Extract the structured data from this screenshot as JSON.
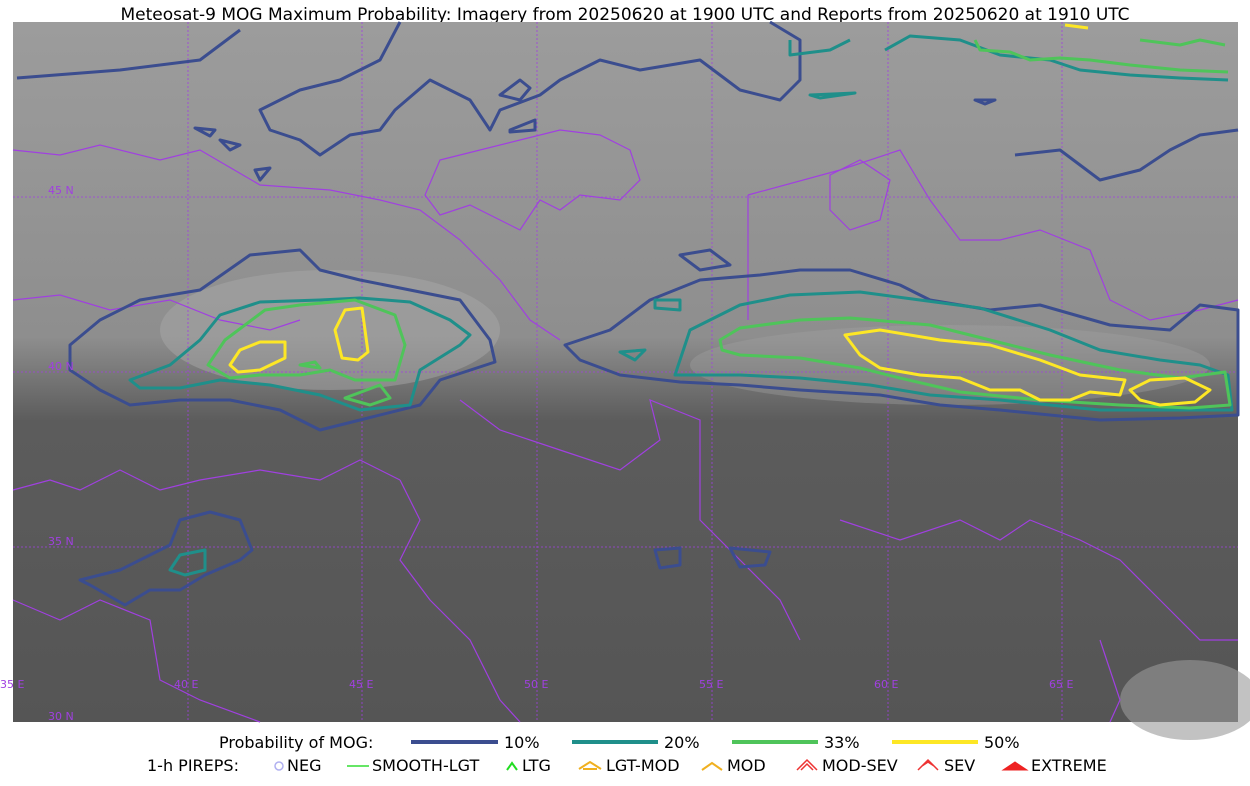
{
  "title": "Meteosat-9 MOG Maximum Probability: Imagery from 20250620 at 1900 UTC and Reports from 20250620 at 1910 UTC",
  "map": {
    "lon_labels": [
      "35 E",
      "40 E",
      "45 E",
      "50 E",
      "55 E",
      "60 E",
      "65 E"
    ],
    "lat_labels": [
      "45 N",
      "40 N",
      "35 N",
      "30 N"
    ]
  },
  "legend": {
    "mog_label": "Probability of MOG:",
    "mog_levels": [
      "10%",
      "20%",
      "33%",
      "50%"
    ],
    "pirep_label": "1-h PIREPS:",
    "pireps": [
      "NEG",
      "SMOOTH-LGT",
      "LTG",
      "LGT-MOD",
      "MOD",
      "MOD-SEV",
      "SEV",
      "EXTREME"
    ]
  }
}
